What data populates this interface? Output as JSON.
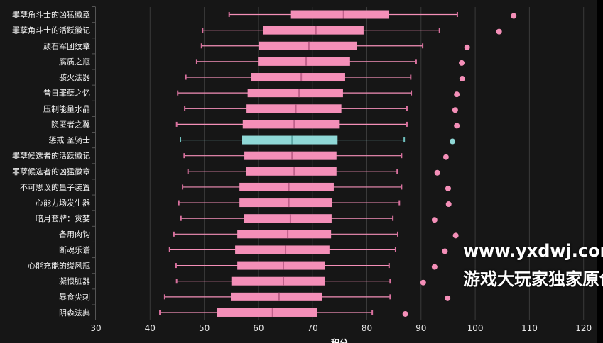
{
  "chart_data": {
    "type": "boxplot",
    "orientation": "horizontal",
    "title": "",
    "xlabel": "积分",
    "ylabel": "",
    "xlim": [
      30,
      122.5
    ],
    "xticks": [
      30,
      40,
      50,
      60,
      70,
      80,
      90,
      100,
      110,
      120
    ],
    "grid": "vertical",
    "colors": {
      "default": "#f48fb8",
      "highlight": "#8fd8d6",
      "median": "#c0608a",
      "background": "#161616"
    },
    "highlight_category": "惩戒 圣骑士",
    "categories": [
      "罪孽角斗士的凶猛徽章",
      "罪孽角斗士的活跃徽记",
      "顽石军团纹章",
      "腐质之瓶",
      "骇火法器",
      "昔日罪孽之忆",
      "压制能量水晶",
      "隐匿者之翼",
      "惩戒 圣骑士",
      "罪孽候选者的活跃徽记",
      "罪孽候选者的凶猛徽章",
      "不可思议的量子装置",
      "心能力场发生器",
      "暗月套牌：贪婪",
      "备用肉钩",
      "断魂乐谱",
      "心能充能的缕风瓶",
      "凝恨脏器",
      "暴食尖刺",
      "阴森法典"
    ],
    "series": [
      {
        "min": 54.6,
        "q1": 66.0,
        "median": 75.7,
        "q3": 84.1,
        "max": 96.7,
        "outlier": 107.1
      },
      {
        "min": 49.7,
        "q1": 60.8,
        "median": 70.6,
        "q3": 79.4,
        "max": 93.4,
        "outlier": 104.4
      },
      {
        "min": 49.5,
        "q1": 60.1,
        "median": 69.3,
        "q3": 78.1,
        "max": 90.3,
        "outlier": 98.5
      },
      {
        "min": 48.6,
        "q1": 59.9,
        "median": 68.8,
        "q3": 76.9,
        "max": 89.1,
        "outlier": 97.5
      },
      {
        "min": 46.6,
        "q1": 58.7,
        "median": 67.9,
        "q3": 76.0,
        "max": 88.1,
        "outlier": 97.6
      },
      {
        "min": 45.1,
        "q1": 58.0,
        "median": 67.5,
        "q3": 75.6,
        "max": 88.2,
        "outlier": 96.6
      },
      {
        "min": 46.4,
        "q1": 57.8,
        "median": 66.9,
        "q3": 75.3,
        "max": 87.4,
        "outlier": 96.3
      },
      {
        "min": 44.9,
        "q1": 57.1,
        "median": 66.6,
        "q3": 75.0,
        "max": 87.4,
        "outlier": 96.6
      },
      {
        "min": 45.6,
        "q1": 57.0,
        "median": 66.2,
        "q3": 74.6,
        "max": 86.9,
        "outlier": 95.8
      },
      {
        "min": 46.3,
        "q1": 57.4,
        "median": 66.2,
        "q3": 74.4,
        "max": 86.4,
        "outlier": 94.6
      },
      {
        "min": 47.0,
        "q1": 57.7,
        "median": 66.6,
        "q3": 74.4,
        "max": 85.6,
        "outlier": 93.0
      },
      {
        "min": 46.0,
        "q1": 56.5,
        "median": 65.6,
        "q3": 73.9,
        "max": 86.4,
        "outlier": 95.0
      },
      {
        "min": 45.3,
        "q1": 56.5,
        "median": 65.6,
        "q3": 73.6,
        "max": 86.0,
        "outlier": 95.1
      },
      {
        "min": 45.7,
        "q1": 57.3,
        "median": 65.9,
        "q3": 73.5,
        "max": 84.8,
        "outlier": 92.5
      },
      {
        "min": 44.4,
        "q1": 56.1,
        "median": 65.4,
        "q3": 73.4,
        "max": 85.7,
        "outlier": 96.4
      },
      {
        "min": 43.6,
        "q1": 55.7,
        "median": 65.0,
        "q3": 73.1,
        "max": 85.3,
        "outlier": 94.4
      },
      {
        "min": 44.8,
        "q1": 56.1,
        "median": 64.6,
        "q3": 72.3,
        "max": 84.1,
        "outlier": 92.5
      },
      {
        "min": 44.9,
        "q1": 55.0,
        "median": 64.6,
        "q3": 72.2,
        "max": 84.3,
        "outlier": 90.4
      },
      {
        "min": 42.7,
        "q1": 54.9,
        "median": 63.8,
        "q3": 71.8,
        "max": 84.3,
        "outlier": 94.9
      },
      {
        "min": 41.8,
        "q1": 52.3,
        "median": 62.6,
        "q3": 70.8,
        "max": 81.0,
        "outlier": 87.1
      }
    ]
  },
  "watermark": {
    "line1": "www.yxdwj.com",
    "line2": "游戏大玩家独家原创"
  }
}
